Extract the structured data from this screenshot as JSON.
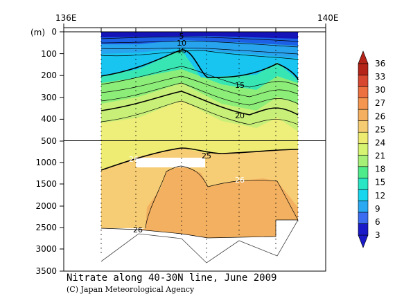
{
  "chart_data": {
    "type": "heatmap",
    "title": "Nitrate along 40-30N line, June 2009",
    "credit": "(C) Japan Meteorological Agency",
    "x_top_labels": [
      "136E",
      "140E"
    ],
    "y_unit": "(m)",
    "y_ticks_upper": [
      "0",
      "100",
      "200",
      "300",
      "400",
      "500"
    ],
    "y_ticks_lower": [
      "1000",
      "1500",
      "2000",
      "2500",
      "3000",
      "3500"
    ],
    "colorbar": {
      "levels": [
        "3",
        "6",
        "9",
        "12",
        "15",
        "18",
        "21",
        "24",
        "25",
        "26",
        "27",
        "30",
        "33",
        "36"
      ],
      "colors": [
        "#1a1ac8",
        "#3c6cf0",
        "#2aa8f2",
        "#18d6ee",
        "#28e6c4",
        "#50ec8c",
        "#a6f078",
        "#d6f472",
        "#eeec70",
        "#f6cc72",
        "#f4b060",
        "#f49650",
        "#ec7040",
        "#d84830",
        "#b42418"
      ]
    },
    "contour_labels": [
      "5",
      "10",
      "15",
      "15",
      "20",
      "25",
      "26",
      "26",
      "26"
    ]
  }
}
